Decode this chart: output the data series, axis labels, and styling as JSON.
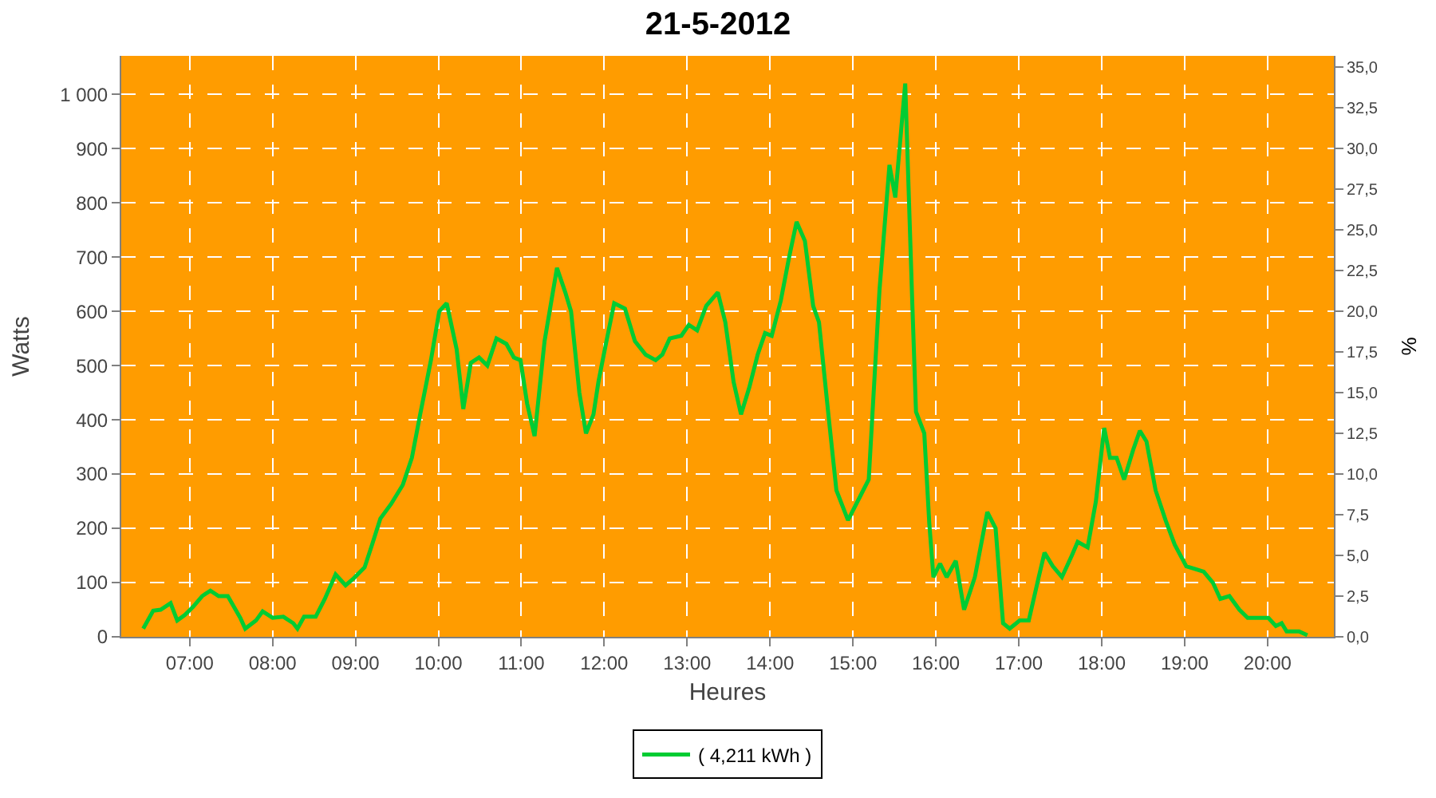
{
  "chart_data": {
    "type": "line",
    "title": "21-5-2012",
    "xlabel": "Heures",
    "ylabel": "Watts",
    "y2label": "%",
    "x": [
      6.44,
      6.56,
      6.65,
      6.77,
      6.85,
      6.94,
      7.04,
      7.15,
      7.25,
      7.35,
      7.46,
      7.61,
      7.67,
      7.8,
      7.88,
      8.0,
      8.13,
      8.25,
      8.3,
      8.38,
      8.52,
      8.63,
      8.76,
      8.88,
      8.98,
      9.11,
      9.2,
      9.3,
      9.43,
      9.57,
      9.68,
      9.78,
      9.91,
      10.01,
      10.1,
      10.22,
      10.3,
      10.39,
      10.49,
      10.59,
      10.7,
      10.82,
      10.91,
      10.99,
      11.07,
      11.16,
      11.28,
      11.43,
      11.53,
      11.6,
      11.7,
      11.78,
      11.87,
      11.93,
      12.02,
      12.12,
      12.25,
      12.37,
      12.5,
      12.62,
      12.7,
      12.79,
      12.93,
      13.02,
      13.12,
      13.23,
      13.37,
      13.46,
      13.56,
      13.65,
      13.75,
      13.85,
      13.94,
      14.02,
      14.13,
      14.23,
      14.32,
      14.42,
      14.52,
      14.59,
      14.71,
      14.8,
      14.94,
      15.09,
      15.19,
      15.32,
      15.44,
      15.51,
      15.63,
      15.71,
      15.76,
      15.86,
      15.92,
      15.97,
      16.05,
      16.13,
      16.24,
      16.34,
      16.47,
      16.62,
      16.72,
      16.81,
      16.89,
      17.01,
      17.12,
      17.24,
      17.31,
      17.41,
      17.52,
      17.64,
      17.71,
      17.83,
      17.93,
      18.03,
      18.1,
      18.18,
      18.27,
      18.38,
      18.46,
      18.54,
      18.65,
      18.77,
      18.88,
      19.02,
      19.13,
      19.23,
      19.34,
      19.43,
      19.54,
      19.66,
      19.76,
      20.01,
      20.1,
      20.17,
      20.23,
      20.38,
      20.48
    ],
    "series": [
      {
        "name": "( 4,211 kWh )",
        "color": "#00cc33",
        "values": [
          15,
          48,
          50,
          62,
          30,
          40,
          55,
          75,
          85,
          75,
          75,
          35,
          15,
          30,
          47,
          35,
          37,
          25,
          15,
          37,
          37,
          70,
          115,
          95,
          108,
          128,
          170,
          218,
          245,
          280,
          330,
          410,
          510,
          600,
          615,
          530,
          420,
          505,
          515,
          500,
          550,
          540,
          515,
          510,
          430,
          370,
          545,
          680,
          635,
          600,
          450,
          375,
          410,
          470,
          540,
          615,
          605,
          545,
          520,
          510,
          520,
          550,
          555,
          575,
          565,
          610,
          635,
          580,
          470,
          410,
          460,
          520,
          560,
          555,
          620,
          700,
          765,
          730,
          610,
          580,
          400,
          270,
          215,
          260,
          290,
          640,
          870,
          810,
          1020,
          640,
          415,
          375,
          210,
          110,
          135,
          110,
          140,
          50,
          110,
          230,
          200,
          25,
          15,
          30,
          30,
          110,
          155,
          130,
          110,
          150,
          175,
          165,
          250,
          385,
          330,
          330,
          290,
          345,
          380,
          360,
          270,
          215,
          170,
          130,
          125,
          120,
          100,
          70,
          75,
          50,
          35,
          35,
          20,
          25,
          10,
          10,
          3
        ]
      }
    ],
    "xlim": [
      6.175,
      20.8
    ],
    "xticks": [
      {
        "value": 7,
        "label": "07:00"
      },
      {
        "value": 8,
        "label": "08:00"
      },
      {
        "value": 9,
        "label": "09:00"
      },
      {
        "value": 10,
        "label": "10:00"
      },
      {
        "value": 11,
        "label": "11:00"
      },
      {
        "value": 12,
        "label": "12:00"
      },
      {
        "value": 13,
        "label": "13:00"
      },
      {
        "value": 14,
        "label": "14:00"
      },
      {
        "value": 15,
        "label": "15:00"
      },
      {
        "value": 16,
        "label": "16:00"
      },
      {
        "value": 17,
        "label": "17:00"
      },
      {
        "value": 18,
        "label": "18:00"
      },
      {
        "value": 19,
        "label": "19:00"
      },
      {
        "value": 20,
        "label": "20:00"
      }
    ],
    "ylim": [
      0,
      1071
    ],
    "yticks": [
      0,
      100,
      200,
      300,
      400,
      500,
      600,
      700,
      800,
      900,
      {
        "value": 1000,
        "label": "1 000"
      }
    ],
    "y2lim": [
      0,
      35.7
    ],
    "y2ticks": [
      {
        "value": 0,
        "label": "0,0"
      },
      {
        "value": 2.5,
        "label": "2,5"
      },
      {
        "value": 5,
        "label": "5,0"
      },
      {
        "value": 7.5,
        "label": "7,5"
      },
      {
        "value": 10,
        "label": "10,0"
      },
      {
        "value": 12.5,
        "label": "12,5"
      },
      {
        "value": 15,
        "label": "15,0"
      },
      {
        "value": 17.5,
        "label": "17,5"
      },
      {
        "value": 20,
        "label": "20,0"
      },
      {
        "value": 22.5,
        "label": "22,5"
      },
      {
        "value": 25,
        "label": "25,0"
      },
      {
        "value": 27.5,
        "label": "27,5"
      },
      {
        "value": 30,
        "label": "30,0"
      },
      {
        "value": 32.5,
        "label": "32,5"
      },
      {
        "value": 35,
        "label": "35,0"
      }
    ],
    "grid": true,
    "legend": "bottom",
    "marker": "none",
    "line_style": "solid"
  }
}
